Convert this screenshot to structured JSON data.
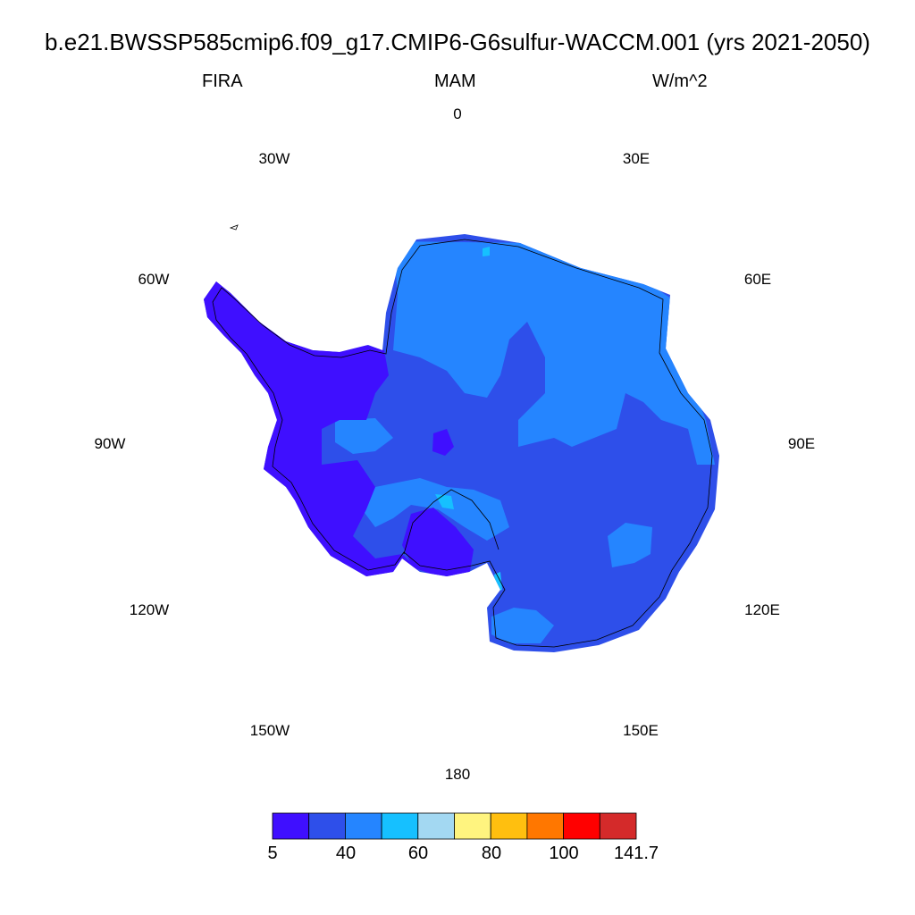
{
  "title": "b.e21.BWSSP585cmip6.f09_g17.CMIP6-G6sulfur-WACCM.001 (yrs 2021-2050)",
  "variable": "FIRA",
  "season": "MAM",
  "units": "W/m^2",
  "lon_labels": {
    "n": "0",
    "e30": "30E",
    "e60": "60E",
    "e90": "90E",
    "e120": "120E",
    "e150": "150E",
    "s": "180",
    "w150": "150W",
    "w120": "120W",
    "w90": "90W",
    "w60": "60W",
    "w30": "30W"
  },
  "colorbar": {
    "colors": [
      "#3f0fff",
      "#2e4fea",
      "#2585ff",
      "#16c0ff",
      "#a3d8f2",
      "#fff47f",
      "#ffbf0f",
      "#ff7700",
      "#ff0000",
      "#d42a2a"
    ],
    "labels": [
      "5",
      "40",
      "60",
      "80",
      "100",
      "141.7"
    ]
  },
  "field_colors": {
    "low": "#3f0fff",
    "mid": "#2e4fea",
    "high": "#2585ff",
    "peak": "#16c0ff"
  }
}
